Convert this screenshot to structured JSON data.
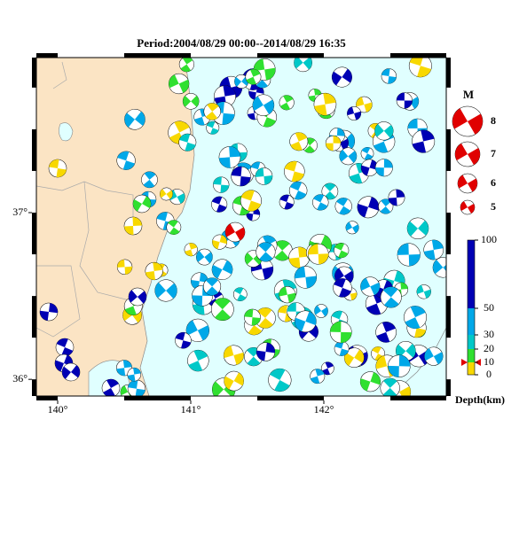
{
  "title": "Period:2004/08/29 00:00--2014/08/29 16:35",
  "map": {
    "lonlim": [
      139.84,
      142.92
    ],
    "latlim": [
      35.9,
      37.93
    ],
    "xticks": [
      {
        "value": 140,
        "label": "140°"
      },
      {
        "value": 141,
        "label": "141°"
      },
      {
        "value": 142,
        "label": "142°"
      }
    ],
    "yticks": [
      {
        "value": 36,
        "label": "36°"
      },
      {
        "value": 37,
        "label": "37°"
      }
    ]
  },
  "magnitude_legend": {
    "title": "M",
    "values": [
      8,
      7,
      6,
      5
    ]
  },
  "depth_scale": {
    "title": "Depth(km)",
    "ticks": [
      100,
      50,
      30,
      20,
      10,
      0
    ]
  }
}
